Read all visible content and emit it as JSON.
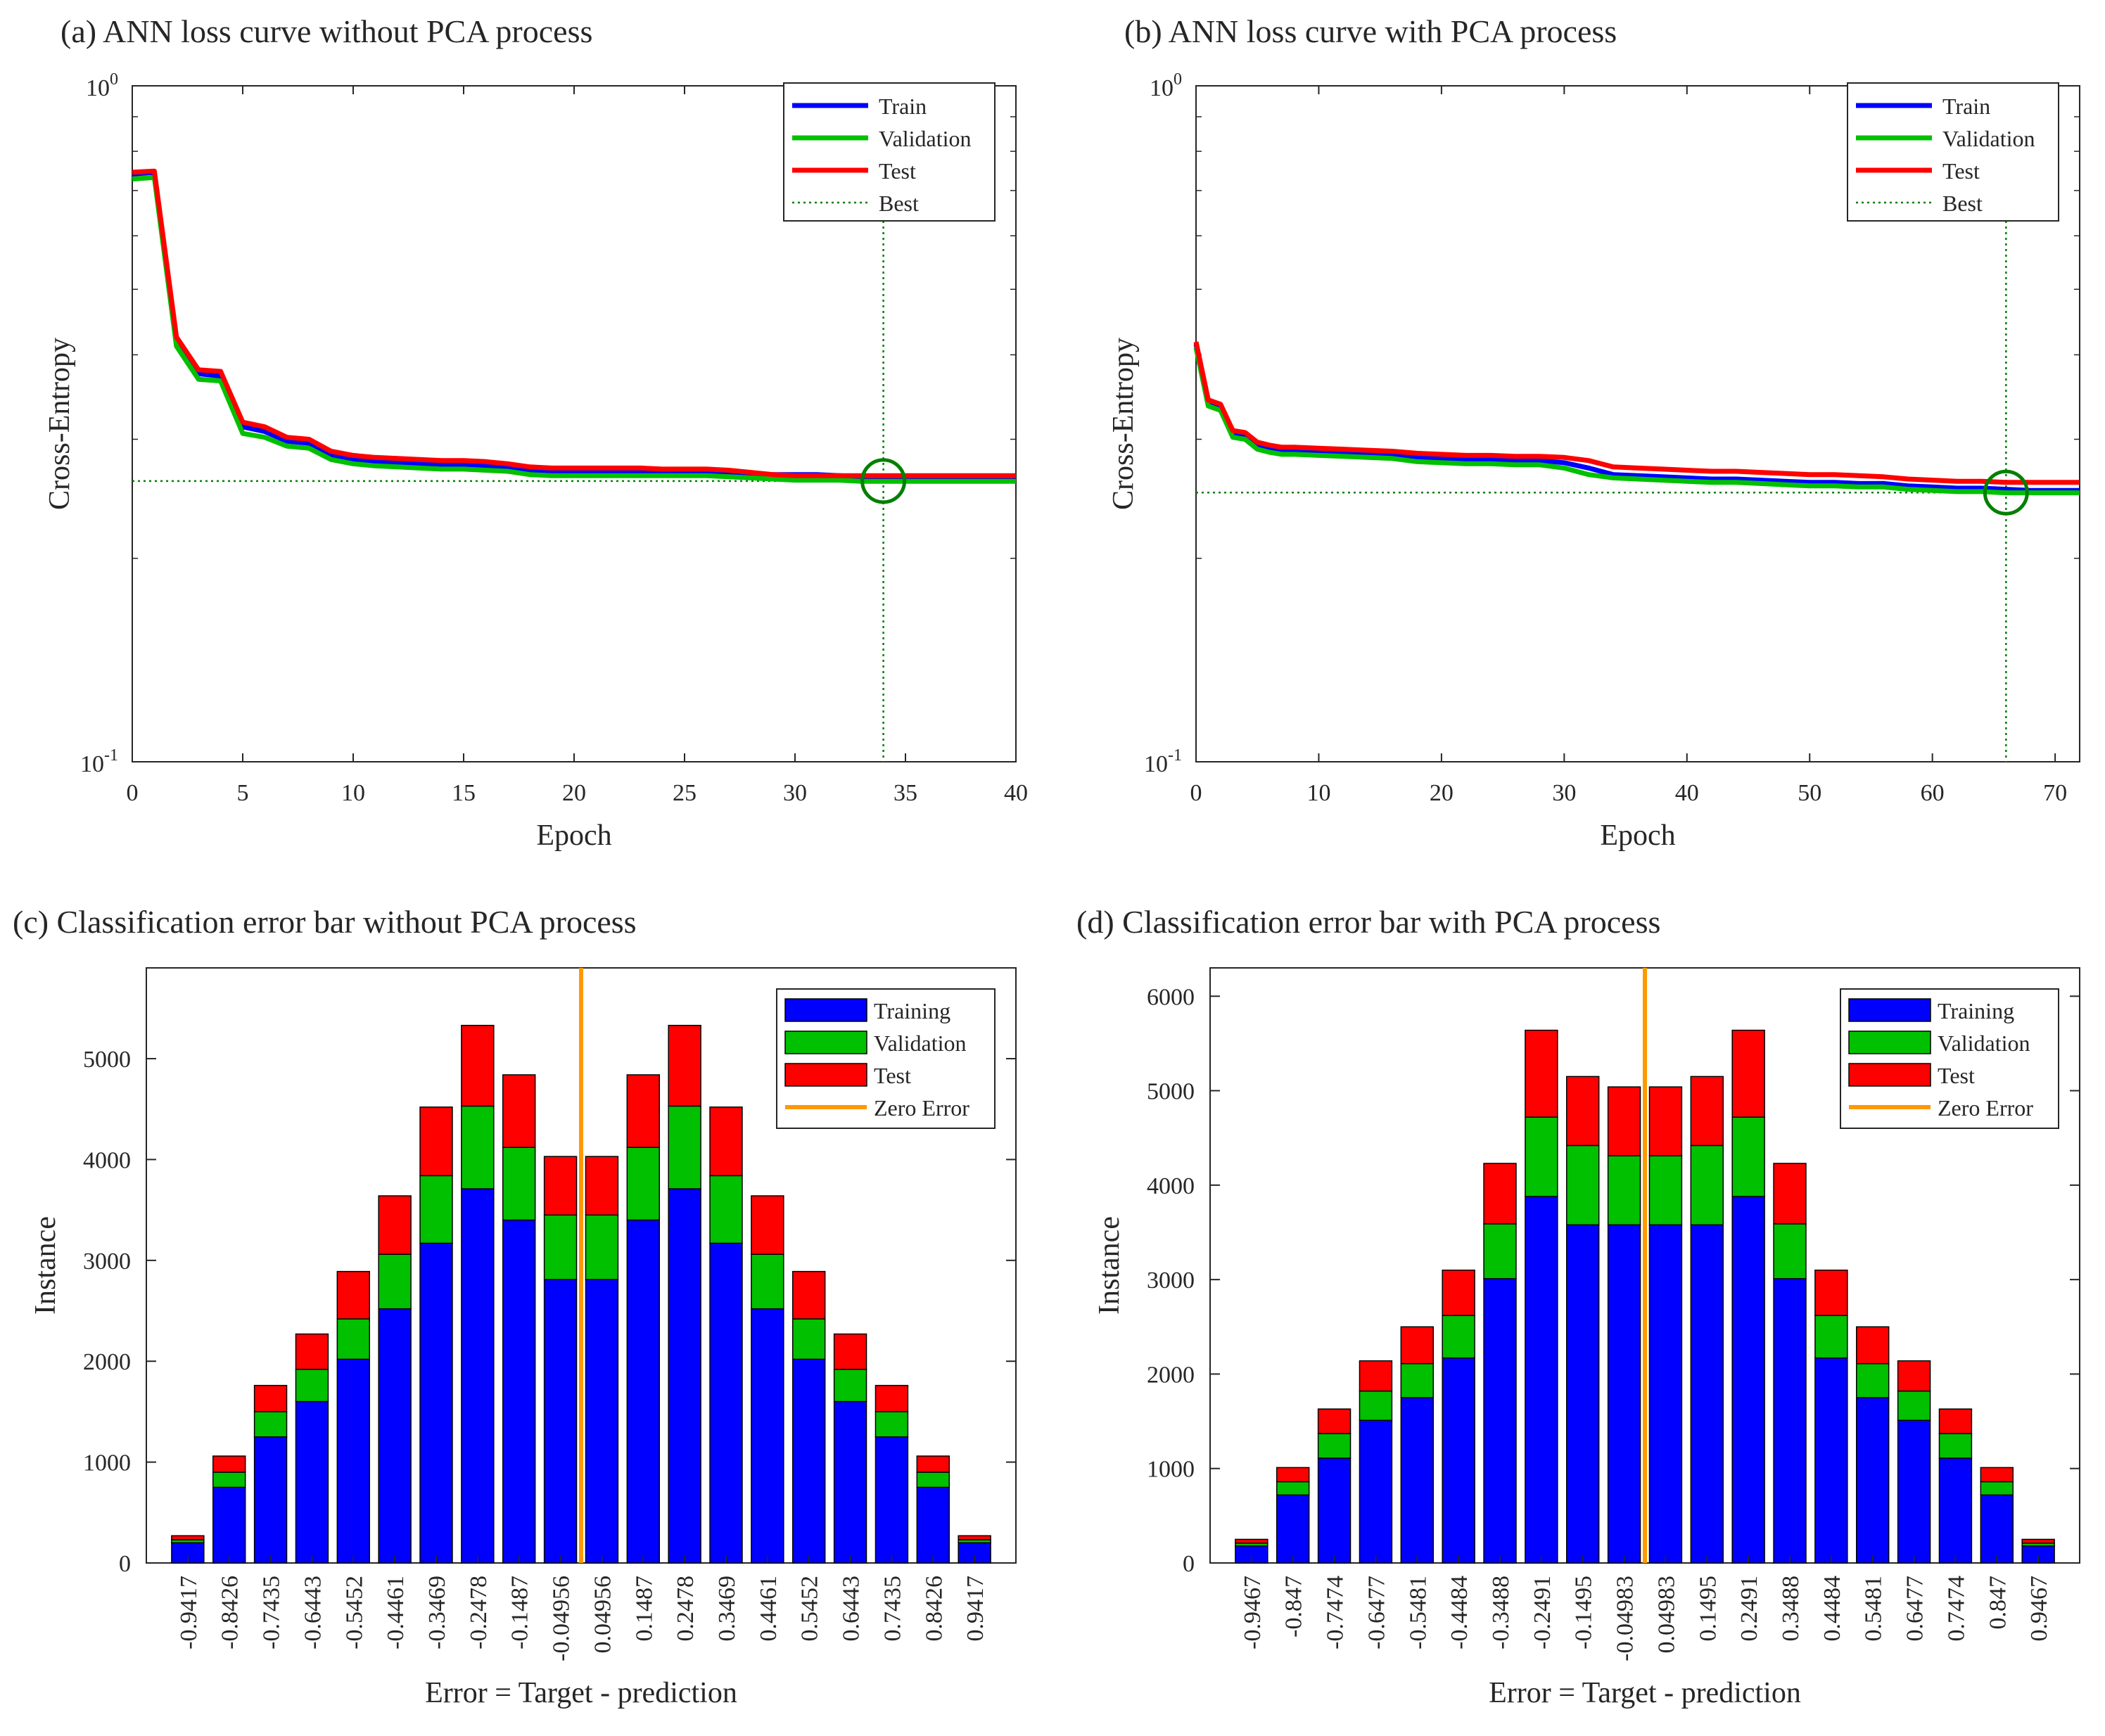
{
  "colors": {
    "train": "#0000ff",
    "validation": "#00c000",
    "test": "#ff0000",
    "best": "#008000",
    "zero_error": "#ff9900",
    "axis": "#262626"
  },
  "chart_data": [
    {
      "id": "a",
      "type": "line",
      "title": "(a) ANN loss curve without PCA process",
      "xlabel": "Epoch",
      "ylabel": "Cross-Entropy",
      "yscale": "log",
      "xlim": [
        0,
        40
      ],
      "ylim": [
        0.1,
        1
      ],
      "xticks": [
        0,
        5,
        10,
        15,
        20,
        25,
        30,
        35,
        40
      ],
      "yticks": [
        {
          "value": 1,
          "base": "10",
          "exp": "0"
        },
        {
          "value": 0.1,
          "base": "10",
          "exp": "-1"
        }
      ],
      "best_epoch": 34,
      "best_value": 0.2602,
      "x": [
        0,
        1,
        2,
        3,
        4,
        5,
        6,
        7,
        8,
        9,
        10,
        11,
        12,
        13,
        14,
        15,
        16,
        17,
        18,
        19,
        20,
        21,
        22,
        23,
        24,
        25,
        26,
        27,
        28,
        29,
        30,
        31,
        32,
        33,
        34,
        35,
        36,
        37,
        38,
        39,
        40
      ],
      "series": [
        {
          "name": "Train",
          "values": [
            0.74,
            0.745,
            0.42,
            0.375,
            0.372,
            0.313,
            0.308,
            0.298,
            0.296,
            0.284,
            0.28,
            0.278,
            0.277,
            0.276,
            0.275,
            0.275,
            0.274,
            0.273,
            0.27,
            0.269,
            0.269,
            0.269,
            0.269,
            0.269,
            0.268,
            0.268,
            0.268,
            0.268,
            0.267,
            0.266,
            0.266,
            0.266,
            0.265,
            0.264,
            0.264,
            0.264,
            0.264,
            0.264,
            0.264,
            0.264,
            0.264
          ]
        },
        {
          "name": "Validation",
          "values": [
            0.728,
            0.732,
            0.412,
            0.368,
            0.366,
            0.306,
            0.302,
            0.293,
            0.291,
            0.28,
            0.276,
            0.274,
            0.273,
            0.272,
            0.271,
            0.271,
            0.27,
            0.269,
            0.266,
            0.265,
            0.265,
            0.265,
            0.265,
            0.265,
            0.265,
            0.265,
            0.265,
            0.264,
            0.263,
            0.262,
            0.261,
            0.261,
            0.261,
            0.26,
            0.26,
            0.26,
            0.26,
            0.26,
            0.26,
            0.26,
            0.26
          ]
        },
        {
          "name": "Test",
          "values": [
            0.745,
            0.748,
            0.425,
            0.38,
            0.378,
            0.318,
            0.313,
            0.302,
            0.3,
            0.288,
            0.284,
            0.282,
            0.281,
            0.28,
            0.279,
            0.279,
            0.278,
            0.276,
            0.273,
            0.272,
            0.272,
            0.272,
            0.272,
            0.272,
            0.271,
            0.271,
            0.271,
            0.27,
            0.268,
            0.266,
            0.265,
            0.265,
            0.265,
            0.265,
            0.265,
            0.265,
            0.265,
            0.265,
            0.265,
            0.265,
            0.265
          ]
        }
      ],
      "legend": [
        "Train",
        "Validation",
        "Test",
        "Best"
      ],
      "legend_position": "top-right"
    },
    {
      "id": "b",
      "type": "line",
      "title": "(b) ANN loss curve with PCA process",
      "xlabel": "Epoch",
      "ylabel": "Cross-Entropy",
      "yscale": "log",
      "xlim": [
        0,
        72
      ],
      "ylim": [
        0.1,
        1
      ],
      "xticks": [
        0,
        10,
        20,
        30,
        40,
        50,
        60,
        70
      ],
      "yticks": [
        {
          "value": 1,
          "base": "10",
          "exp": "0"
        },
        {
          "value": 0.1,
          "base": "10",
          "exp": "-1"
        }
      ],
      "best_epoch": 66,
      "best_value": 0.2502,
      "x": [
        0,
        1,
        2,
        3,
        4,
        5,
        6,
        7,
        8,
        10,
        12,
        14,
        16,
        18,
        20,
        22,
        24,
        26,
        28,
        30,
        32,
        34,
        36,
        38,
        40,
        42,
        44,
        46,
        48,
        50,
        52,
        54,
        56,
        58,
        60,
        62,
        64,
        66,
        68,
        70,
        72
      ],
      "series": [
        {
          "name": "Train",
          "values": [
            0.415,
            0.34,
            0.335,
            0.306,
            0.304,
            0.294,
            0.291,
            0.289,
            0.289,
            0.288,
            0.287,
            0.286,
            0.285,
            0.282,
            0.281,
            0.28,
            0.28,
            0.279,
            0.279,
            0.277,
            0.272,
            0.266,
            0.265,
            0.264,
            0.263,
            0.262,
            0.262,
            0.261,
            0.26,
            0.259,
            0.259,
            0.258,
            0.258,
            0.256,
            0.255,
            0.254,
            0.254,
            0.253,
            0.252,
            0.252,
            0.252
          ]
        },
        {
          "name": "Validation",
          "values": [
            0.41,
            0.336,
            0.331,
            0.302,
            0.3,
            0.29,
            0.287,
            0.285,
            0.285,
            0.284,
            0.283,
            0.282,
            0.281,
            0.278,
            0.277,
            0.276,
            0.276,
            0.275,
            0.275,
            0.272,
            0.266,
            0.263,
            0.262,
            0.261,
            0.26,
            0.259,
            0.259,
            0.258,
            0.257,
            0.256,
            0.256,
            0.255,
            0.255,
            0.253,
            0.252,
            0.251,
            0.251,
            0.25,
            0.25,
            0.25,
            0.25
          ]
        },
        {
          "name": "Test",
          "values": [
            0.418,
            0.343,
            0.338,
            0.309,
            0.307,
            0.297,
            0.294,
            0.292,
            0.292,
            0.291,
            0.29,
            0.289,
            0.288,
            0.286,
            0.285,
            0.284,
            0.284,
            0.283,
            0.283,
            0.282,
            0.279,
            0.273,
            0.272,
            0.271,
            0.27,
            0.269,
            0.269,
            0.268,
            0.267,
            0.266,
            0.266,
            0.265,
            0.264,
            0.262,
            0.261,
            0.26,
            0.26,
            0.259,
            0.259,
            0.259,
            0.259
          ]
        }
      ],
      "legend": [
        "Train",
        "Validation",
        "Test",
        "Best"
      ],
      "legend_position": "top-right"
    },
    {
      "id": "c",
      "type": "bar",
      "stacked": true,
      "title": "(c) Classification error bar without PCA process",
      "xlabel": "Error = Target - prediction",
      "ylabel": "Instance",
      "ylim": [
        0,
        5900
      ],
      "yticks": [
        0,
        1000,
        2000,
        3000,
        4000,
        5000
      ],
      "zero_error_position": 9.5,
      "categories": [
        "-0.9417",
        "-0.8426",
        "-0.7435",
        "-0.6443",
        "-0.5452",
        "-0.4461",
        "-0.3469",
        "-0.2478",
        "-0.1487",
        "-0.04956",
        "0.04956",
        "0.1487",
        "0.2478",
        "0.3469",
        "0.4461",
        "0.5452",
        "0.6443",
        "0.7435",
        "0.8426",
        "0.9417"
      ],
      "series": [
        {
          "name": "Training",
          "values": [
            200,
            750,
            1250,
            1600,
            2020,
            2520,
            3170,
            3710,
            3400,
            2810,
            2810,
            3400,
            3710,
            3170,
            2520,
            2020,
            1600,
            1250,
            750,
            200
          ]
        },
        {
          "name": "Validation",
          "values": [
            30,
            150,
            250,
            320,
            400,
            540,
            670,
            820,
            720,
            640,
            640,
            720,
            820,
            670,
            540,
            400,
            320,
            250,
            150,
            30
          ]
        },
        {
          "name": "Test",
          "values": [
            40,
            160,
            260,
            350,
            470,
            580,
            680,
            800,
            720,
            580,
            580,
            720,
            800,
            680,
            580,
            470,
            350,
            260,
            160,
            40
          ]
        }
      ],
      "legend": [
        "Training",
        "Validation",
        "Test",
        "Zero Error"
      ],
      "legend_position": "top-right"
    },
    {
      "id": "d",
      "type": "bar",
      "stacked": true,
      "title": "(d) Classification error bar with PCA process",
      "xlabel": "Error = Target - prediction",
      "ylabel": "Instance",
      "ylim": [
        0,
        6300
      ],
      "yticks": [
        0,
        1000,
        2000,
        3000,
        4000,
        5000,
        6000
      ],
      "zero_error_position": 9.5,
      "categories": [
        "-0.9467",
        "-0.847",
        "-0.7474",
        "-0.6477",
        "-0.5481",
        "-0.4484",
        "-0.3488",
        "-0.2491",
        "-0.1495",
        "-0.04983",
        "0.04983",
        "0.1495",
        "0.2491",
        "0.3488",
        "0.4484",
        "0.5481",
        "0.6477",
        "0.7474",
        "0.847",
        "0.9467"
      ],
      "series": [
        {
          "name": "Training",
          "values": [
            180,
            720,
            1110,
            1510,
            1750,
            2170,
            3010,
            3880,
            3580,
            3580,
            3580,
            3580,
            3880,
            3010,
            2170,
            1750,
            1510,
            1110,
            720,
            180
          ]
        },
        {
          "name": "Validation",
          "values": [
            30,
            140,
            260,
            310,
            360,
            450,
            580,
            840,
            840,
            730,
            730,
            840,
            840,
            580,
            450,
            360,
            310,
            260,
            140,
            30
          ]
        },
        {
          "name": "Test",
          "values": [
            40,
            150,
            260,
            320,
            390,
            480,
            640,
            920,
            730,
            730,
            730,
            730,
            920,
            640,
            480,
            390,
            320,
            260,
            150,
            40
          ]
        }
      ],
      "legend": [
        "Training",
        "Validation",
        "Test",
        "Zero Error"
      ],
      "legend_position": "top-right"
    }
  ]
}
